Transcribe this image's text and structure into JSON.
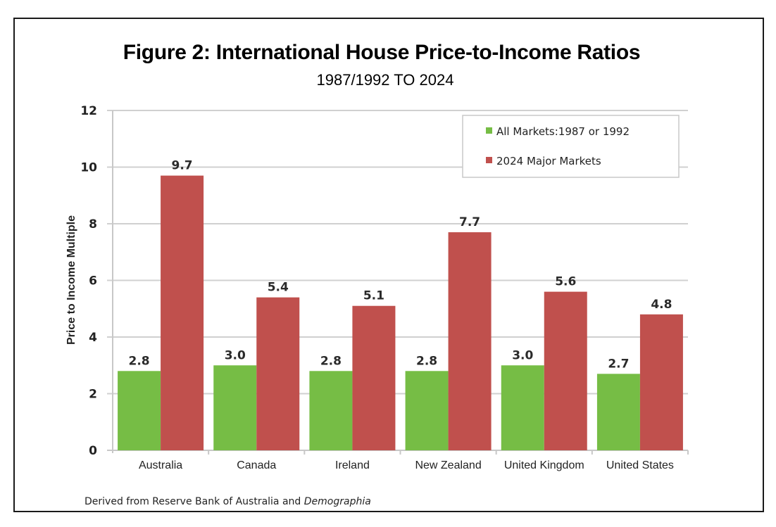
{
  "chart_data": {
    "type": "bar",
    "title": "Figure 2: International House Price-to-Income Ratios",
    "subtitle": "1987/1992 TO 2024",
    "xlabel": "",
    "ylabel": "Price to Income Multiple",
    "ylim": [
      0,
      12
    ],
    "yticks": [
      0,
      2,
      4,
      6,
      8,
      10,
      12
    ],
    "grid": true,
    "legend_position": "top-right",
    "categories": [
      "Australia",
      "Canada",
      "Ireland",
      "New Zealand",
      "United Kingdom",
      "United States"
    ],
    "series": [
      {
        "name": "All Markets:1987 or 1992",
        "color": "#76bd45",
        "values": [
          2.8,
          3.0,
          2.8,
          2.8,
          3.0,
          2.7
        ],
        "labels": [
          "2.8",
          "3.0",
          "2.8",
          "2.8",
          "3.0",
          "2.7"
        ]
      },
      {
        "name": "2024 Major Markets",
        "color": "#c0504d",
        "values": [
          9.7,
          5.4,
          5.1,
          7.7,
          5.6,
          4.8
        ],
        "labels": [
          "9.7",
          "5.4",
          "5.1",
          "7.7",
          "5.6",
          "4.8"
        ]
      }
    ],
    "source_prefix": "Derived from Reserve Bank of Australia and ",
    "source_italic": "Demographia"
  }
}
